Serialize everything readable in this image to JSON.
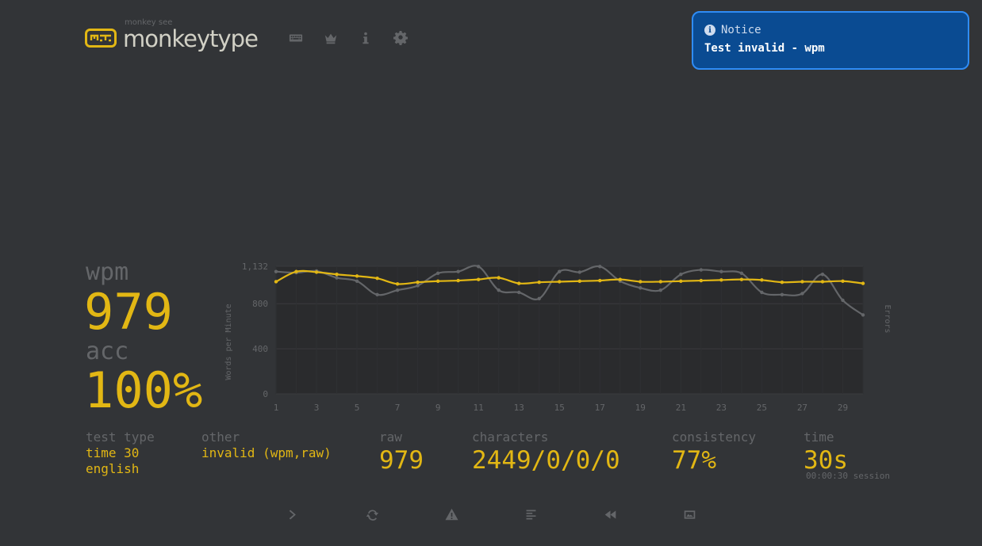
{
  "header": {
    "logo_small": "monkey see",
    "logo_main": "monkeytype",
    "nav": [
      {
        "name": "keyboard-icon"
      },
      {
        "name": "crown-icon"
      },
      {
        "name": "info-icon"
      },
      {
        "name": "gear-icon"
      }
    ]
  },
  "notice": {
    "title": "Notice",
    "message": "Test invalid - wpm"
  },
  "result": {
    "wpm_label": "wpm",
    "wpm_value": "979",
    "acc_label": "acc",
    "acc_value": "100%"
  },
  "stats": {
    "test_type_label": "test type",
    "test_type_value1": "time 30",
    "test_type_value2": "english",
    "other_label": "other",
    "other_value": "invalid (wpm,raw)",
    "raw_label": "raw",
    "raw_value": "979",
    "characters_label": "characters",
    "characters_value": "2449/0/0/0",
    "consistency_label": "consistency",
    "consistency_value": "77%",
    "time_label": "time",
    "time_value": "30s",
    "session_value": "00:00:30 session"
  },
  "buttons": [
    {
      "name": "next-test-icon"
    },
    {
      "name": "restart-icon"
    },
    {
      "name": "warning-icon"
    },
    {
      "name": "words-history-icon"
    },
    {
      "name": "replay-icon"
    },
    {
      "name": "screenshot-icon"
    }
  ],
  "chart_data": {
    "type": "line",
    "ylabel": "Words per Minute",
    "y2label": "Errors",
    "ylim": [
      0,
      1132
    ],
    "yticks": [
      "0",
      "400",
      "800",
      "1,132"
    ],
    "yticks_values": [
      0,
      400,
      800,
      1132
    ],
    "xticks": [
      "1",
      "3",
      "5",
      "7",
      "9",
      "11",
      "13",
      "15",
      "17",
      "19",
      "21",
      "23",
      "25",
      "27",
      "29"
    ],
    "x": [
      1,
      2,
      3,
      4,
      5,
      6,
      7,
      8,
      9,
      10,
      11,
      12,
      13,
      14,
      15,
      16,
      17,
      18,
      19,
      20,
      21,
      22,
      23,
      24,
      25,
      26,
      27,
      28,
      29,
      30
    ],
    "series": [
      {
        "name": "raw",
        "color": "#646669",
        "values": [
          1085,
          1075,
          1090,
          1030,
          1000,
          880,
          920,
          960,
          1070,
          1085,
          1130,
          920,
          900,
          845,
          1085,
          1080,
          1130,
          1000,
          940,
          920,
          1060,
          1100,
          1085,
          1070,
          900,
          880,
          890,
          1060,
          830,
          700
        ]
      },
      {
        "name": "wpm",
        "color": "#e2b714",
        "values": [
          995,
          1085,
          1080,
          1060,
          1045,
          1025,
          975,
          990,
          1000,
          1005,
          1015,
          1030,
          980,
          990,
          995,
          1000,
          1005,
          1015,
          995,
          995,
          1000,
          1005,
          1010,
          1015,
          1010,
          990,
          995,
          995,
          1000,
          980
        ]
      }
    ]
  }
}
